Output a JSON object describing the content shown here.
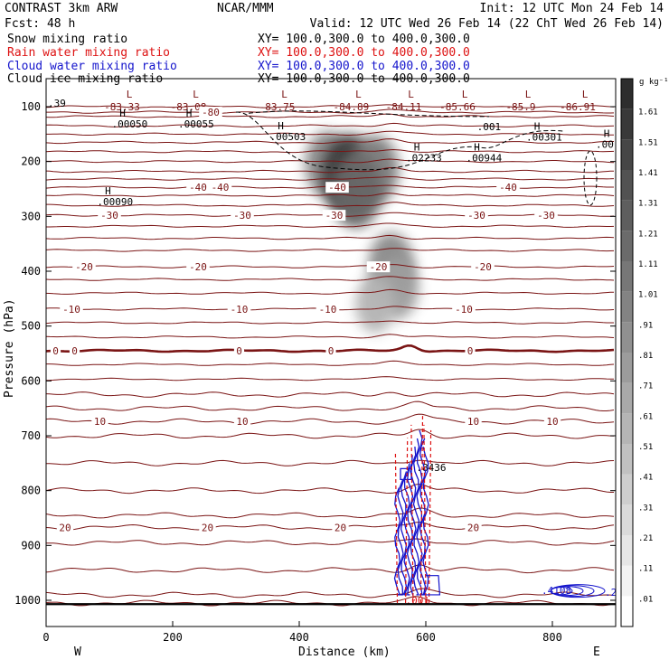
{
  "header": {
    "model": "CONTRAST  3km ARW",
    "center": "NCAR/MMM",
    "init": "Init: 12 UTC Mon 24 Feb 14",
    "fcst": "Fcst:   48 h",
    "valid": "Valid: 12 UTC Wed 26 Feb 14 (22 ChT Wed 26 Feb 14)"
  },
  "fields": [
    {
      "name": "Snow mixing ratio",
      "xy": "XY= 100.0,300.0 to 400.0,300.0",
      "color": "#000000"
    },
    {
      "name": "Rain water mixing ratio",
      "xy": "XY= 100.0,300.0 to 400.0,300.0",
      "color": "#dd1111"
    },
    {
      "name": "Cloud water mixing ratio",
      "xy": "XY= 100.0,300.0 to 400.0,300.0",
      "color": "#1414cc"
    },
    {
      "name": "Cloud ice mixing ratio",
      "xy": "XY= 100.0,300.0 to 400.0,300.0",
      "color": "#000000"
    }
  ],
  "colors": {
    "temperature": "#7a1414",
    "rain": "#dd1111",
    "cloud_water": "#1414cc",
    "frame": "#000000"
  },
  "chart_data": {
    "type": "cross-section contour",
    "xlabel": "Distance (km)",
    "ylabel": "Pressure (hPa)",
    "xlim": [
      0,
      900
    ],
    "ylim": [
      1050,
      70
    ],
    "xticks": [
      0,
      200,
      400,
      600,
      800
    ],
    "yticks": [
      100,
      200,
      300,
      400,
      500,
      600,
      700,
      800,
      900,
      1000
    ],
    "x_end_labels": {
      "left": "W",
      "right": "E"
    },
    "colorbar": {
      "unit": "g kg⁻¹",
      "levels": [
        ".01",
        ".11",
        ".21",
        ".31",
        ".41",
        ".51",
        ".61",
        ".71",
        ".81",
        ".91",
        "1.01",
        "1.11",
        "1.21",
        "1.31",
        "1.41",
        "1.51",
        "1.61"
      ]
    },
    "temperature_contours": [
      {
        "p": 100,
        "labels": [
          {
            "x": 120,
            "t": "-83.33"
          },
          {
            "x": 225,
            "t": "-83.08"
          },
          {
            "x": 365,
            "t": "-83.75"
          },
          {
            "x": 482,
            "t": "-84.89"
          },
          {
            "x": 565,
            "t": "-84.11"
          },
          {
            "x": 650,
            "t": "-85.66"
          },
          {
            "x": 750,
            "t": "-85.9"
          },
          {
            "x": 840,
            "t": "-86.91"
          }
        ]
      },
      {
        "p": 110,
        "labels": [
          {
            "x": 260,
            "t": "-80"
          }
        ]
      },
      {
        "p": 247,
        "labels": [
          {
            "x": 240,
            "t": "-40"
          },
          {
            "x": 275,
            "t": "-40"
          },
          {
            "x": 460,
            "t": "-40"
          },
          {
            "x": 730,
            "t": "-40"
          }
        ]
      },
      {
        "p": 298,
        "labels": [
          {
            "x": 100,
            "t": "-30"
          },
          {
            "x": 310,
            "t": "-30"
          },
          {
            "x": 455,
            "t": "-30"
          },
          {
            "x": 680,
            "t": "-30"
          },
          {
            "x": 790,
            "t": "-30"
          }
        ]
      },
      {
        "p": 392,
        "labels": [
          {
            "x": 60,
            "t": "-20"
          },
          {
            "x": 240,
            "t": "-20"
          },
          {
            "x": 525,
            "t": "-20"
          },
          {
            "x": 690,
            "t": "-20"
          }
        ]
      },
      {
        "p": 469,
        "labels": [
          {
            "x": 40,
            "t": "-10"
          },
          {
            "x": 305,
            "t": "-10"
          },
          {
            "x": 445,
            "t": "-10"
          },
          {
            "x": 660,
            "t": "-10"
          }
        ]
      },
      {
        "p": 545,
        "labels": [
          {
            "x": 15,
            "t": "0"
          },
          {
            "x": 45,
            "t": "0"
          },
          {
            "x": 305,
            "t": "0"
          },
          {
            "x": 450,
            "t": "0"
          },
          {
            "x": 670,
            "t": "0"
          }
        ]
      },
      {
        "p": 674,
        "labels": [
          {
            "x": 85,
            "t": "10"
          },
          {
            "x": 310,
            "t": "10"
          },
          {
            "x": 675,
            "t": "10"
          },
          {
            "x": 800,
            "t": "10"
          }
        ]
      },
      {
        "p": 867,
        "labels": [
          {
            "x": 30,
            "t": "20"
          },
          {
            "x": 255,
            "t": "20"
          },
          {
            "x": 465,
            "t": "20"
          },
          {
            "x": 675,
            "t": "20"
          }
        ]
      }
    ],
    "plain_levels_hPa": [
      118,
      135,
      150,
      165,
      182,
      200,
      218,
      232,
      262,
      280,
      318,
      340,
      362,
      415,
      440,
      494,
      520,
      570,
      597,
      625,
      650,
      700,
      750,
      800,
      845,
      895,
      945,
      990,
      1005
    ],
    "highs": [
      {
        "x": 115,
        "p": 128,
        "v": ".00050"
      },
      {
        "x": 220,
        "p": 128,
        "v": ".00055"
      },
      {
        "x": 365,
        "p": 151,
        "v": ".00503"
      },
      {
        "x": 580,
        "p": 190,
        "v": ".02233"
      },
      {
        "x": 675,
        "p": 190,
        "v": ".00944"
      },
      {
        "x": 770,
        "p": 152,
        "v": ".00301"
      },
      {
        "x": 880,
        "p": 165,
        "v": ".00"
      },
      {
        "x": 92,
        "p": 270,
        "v": ".00090"
      }
    ],
    "misc_labels": [
      {
        "x": 0,
        "p": 93,
        "t": ".39"
      },
      {
        "x": 678,
        "p": 136,
        "t": ".001"
      },
      {
        "x": 582,
        "p": 758,
        "t": ".8436"
      },
      {
        "x": 565,
        "p": 1000,
        "t": ".001"
      },
      {
        "x": 780,
        "p": 982,
        "t": ".4108"
      },
      {
        "x": 880,
        "p": 985,
        "t": ".200"
      }
    ],
    "snow_shading": [
      {
        "x": 445,
        "p": 205,
        "v": 0.9
      },
      {
        "x": 480,
        "p": 225,
        "v": 1.6
      },
      {
        "x": 520,
        "p": 215,
        "v": 1.0
      },
      {
        "x": 490,
        "p": 255,
        "v": 1.2
      },
      {
        "x": 545,
        "p": 390,
        "v": 0.9
      },
      {
        "x": 555,
        "p": 430,
        "v": 0.7
      },
      {
        "x": 520,
        "p": 460,
        "v": 0.5
      }
    ]
  }
}
